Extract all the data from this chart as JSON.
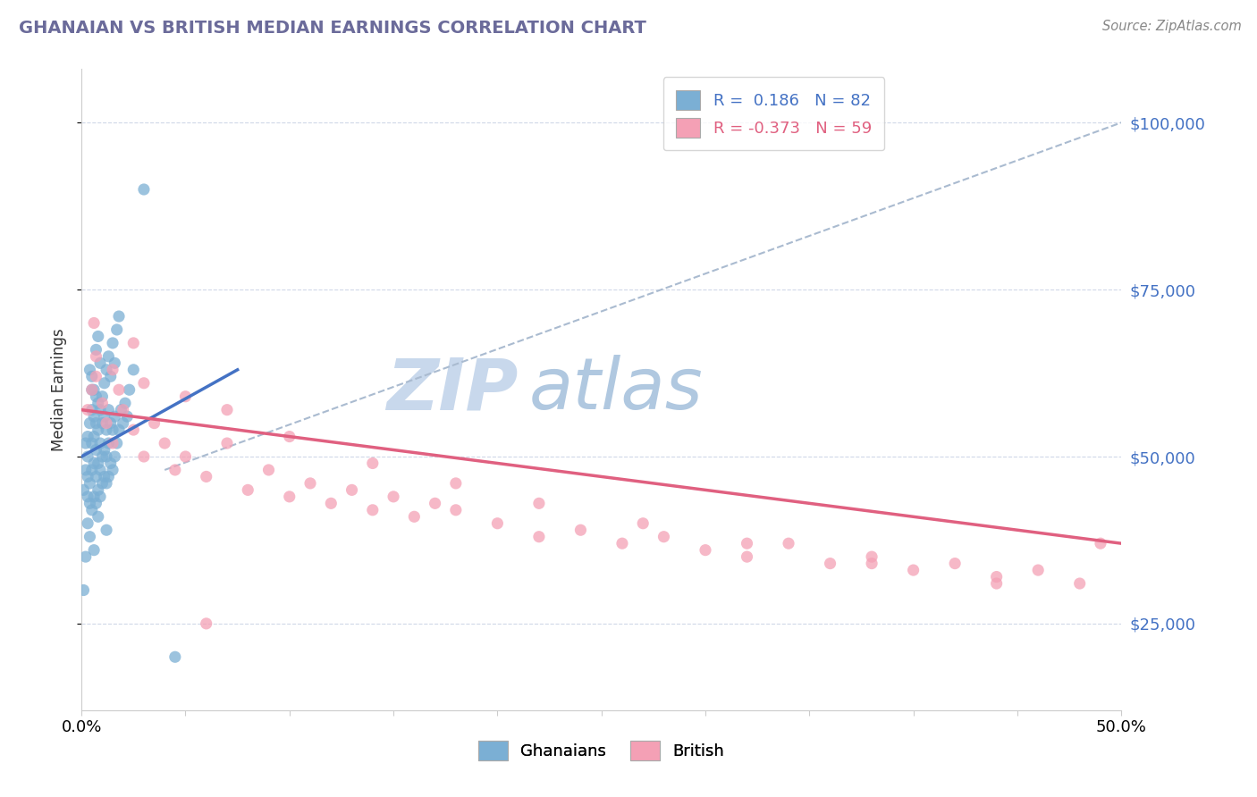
{
  "title": "GHANAIAN VS BRITISH MEDIAN EARNINGS CORRELATION CHART",
  "title_color": "#6b6b9a",
  "source_text": "Source: ZipAtlas.com",
  "ylabel": "Median Earnings",
  "xlim": [
    0.0,
    0.5
  ],
  "ylim": [
    12000,
    108000
  ],
  "xticks": [
    0.0,
    0.05,
    0.1,
    0.15,
    0.2,
    0.25,
    0.3,
    0.35,
    0.4,
    0.45,
    0.5
  ],
  "yticks": [
    25000,
    50000,
    75000,
    100000
  ],
  "blue_color": "#7bafd4",
  "blue_line_color": "#4472c4",
  "pink_color": "#f4a0b5",
  "pink_line_color": "#e06080",
  "dash_color": "#aabbd0",
  "blue_R": 0.186,
  "blue_N": 82,
  "pink_R": -0.373,
  "pink_N": 59,
  "watermark_ZIP": "ZIP",
  "watermark_atlas": "atlas",
  "watermark_color_ZIP": "#c8d8ec",
  "watermark_color_atlas": "#b0c8e0",
  "ghanaian_x": [
    0.001,
    0.002,
    0.002,
    0.003,
    0.003,
    0.003,
    0.003,
    0.004,
    0.004,
    0.004,
    0.005,
    0.005,
    0.005,
    0.005,
    0.005,
    0.006,
    0.006,
    0.006,
    0.006,
    0.007,
    0.007,
    0.007,
    0.007,
    0.007,
    0.008,
    0.008,
    0.008,
    0.008,
    0.009,
    0.009,
    0.009,
    0.009,
    0.01,
    0.01,
    0.01,
    0.011,
    0.011,
    0.011,
    0.012,
    0.012,
    0.012,
    0.013,
    0.013,
    0.013,
    0.014,
    0.014,
    0.015,
    0.015,
    0.016,
    0.016,
    0.017,
    0.018,
    0.019,
    0.02,
    0.021,
    0.022,
    0.023,
    0.025,
    0.003,
    0.004,
    0.005,
    0.006,
    0.007,
    0.008,
    0.009,
    0.01,
    0.011,
    0.012,
    0.013,
    0.014,
    0.015,
    0.016,
    0.017,
    0.018,
    0.001,
    0.002,
    0.004,
    0.006,
    0.008,
    0.012,
    0.03,
    0.045
  ],
  "ghanaian_y": [
    45000,
    48000,
    52000,
    44000,
    47000,
    50000,
    53000,
    43000,
    46000,
    55000,
    42000,
    48000,
    52000,
    57000,
    60000,
    44000,
    49000,
    53000,
    56000,
    43000,
    47000,
    51000,
    55000,
    59000,
    45000,
    49000,
    54000,
    58000,
    44000,
    48000,
    52000,
    57000,
    46000,
    50000,
    55000,
    47000,
    51000,
    56000,
    46000,
    50000,
    54000,
    47000,
    52000,
    57000,
    49000,
    55000,
    48000,
    54000,
    50000,
    56000,
    52000,
    54000,
    57000,
    55000,
    58000,
    56000,
    60000,
    63000,
    40000,
    63000,
    62000,
    60000,
    66000,
    68000,
    64000,
    59000,
    61000,
    63000,
    65000,
    62000,
    67000,
    64000,
    69000,
    71000,
    30000,
    35000,
    38000,
    36000,
    41000,
    39000,
    90000,
    20000
  ],
  "british_x": [
    0.003,
    0.005,
    0.007,
    0.01,
    0.012,
    0.015,
    0.018,
    0.02,
    0.025,
    0.03,
    0.035,
    0.04,
    0.045,
    0.05,
    0.06,
    0.07,
    0.08,
    0.09,
    0.1,
    0.11,
    0.12,
    0.13,
    0.14,
    0.15,
    0.16,
    0.17,
    0.18,
    0.2,
    0.22,
    0.24,
    0.26,
    0.28,
    0.3,
    0.32,
    0.34,
    0.36,
    0.38,
    0.4,
    0.42,
    0.44,
    0.46,
    0.48,
    0.49,
    0.007,
    0.015,
    0.03,
    0.05,
    0.07,
    0.1,
    0.14,
    0.18,
    0.22,
    0.27,
    0.32,
    0.38,
    0.44,
    0.006,
    0.025,
    0.06
  ],
  "british_y": [
    57000,
    60000,
    62000,
    58000,
    55000,
    52000,
    60000,
    57000,
    54000,
    50000,
    55000,
    52000,
    48000,
    50000,
    47000,
    52000,
    45000,
    48000,
    44000,
    46000,
    43000,
    45000,
    42000,
    44000,
    41000,
    43000,
    42000,
    40000,
    38000,
    39000,
    37000,
    38000,
    36000,
    35000,
    37000,
    34000,
    35000,
    33000,
    34000,
    32000,
    33000,
    31000,
    37000,
    65000,
    63000,
    61000,
    59000,
    57000,
    53000,
    49000,
    46000,
    43000,
    40000,
    37000,
    34000,
    31000,
    70000,
    67000,
    25000
  ],
  "blue_line_x0": 0.0,
  "blue_line_y0": 50000,
  "blue_line_x1": 0.075,
  "blue_line_y1": 63000,
  "pink_line_x0": 0.0,
  "pink_line_y0": 57000,
  "pink_line_x1": 0.5,
  "pink_line_y1": 37000,
  "dash_line_x0": 0.04,
  "dash_line_y0": 48000,
  "dash_line_x1": 0.5,
  "dash_line_y1": 100000
}
